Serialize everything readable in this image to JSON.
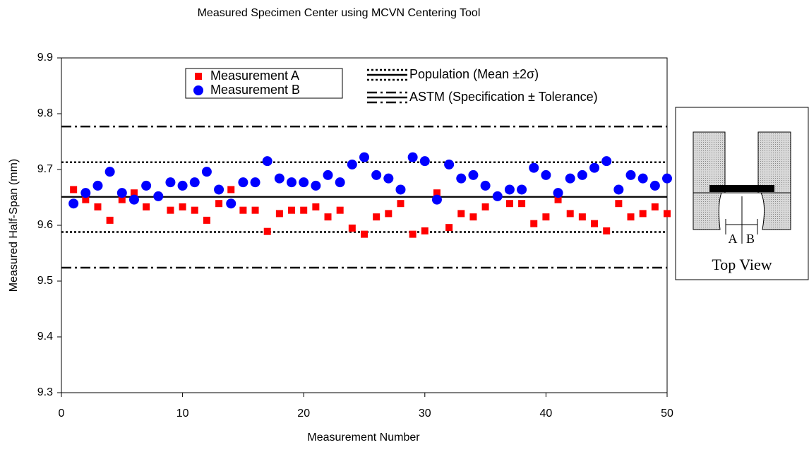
{
  "chart_data": {
    "type": "scatter",
    "title": "Measured Specimen Center using MCVN Centering Tool",
    "x_label": "Measurement Number",
    "y_label": "Measured Half-Span (mm)",
    "x": [
      1,
      2,
      3,
      4,
      5,
      6,
      7,
      8,
      9,
      10,
      11,
      12,
      13,
      14,
      15,
      16,
      17,
      18,
      19,
      20,
      21,
      22,
      23,
      24,
      25,
      26,
      27,
      28,
      29,
      30,
      31,
      32,
      33,
      34,
      35,
      36,
      37,
      38,
      39,
      40,
      41,
      42,
      43,
      44,
      45,
      46,
      47,
      48,
      49,
      50
    ],
    "series": [
      {
        "name": "Measurement A",
        "color": "#ff0000",
        "marker": "square",
        "values": [
          9.664,
          9.646,
          9.633,
          9.609,
          9.646,
          9.658,
          9.633,
          9.652,
          9.627,
          9.633,
          9.627,
          9.609,
          9.639,
          9.664,
          9.627,
          9.627,
          9.589,
          9.621,
          9.627,
          9.627,
          9.633,
          9.615,
          9.627,
          9.595,
          9.584,
          9.615,
          9.621,
          9.639,
          9.584,
          9.59,
          9.658,
          9.596,
          9.621,
          9.615,
          9.633,
          9.652,
          9.639,
          9.639,
          9.603,
          9.615,
          9.646,
          9.621,
          9.615,
          9.603,
          9.59,
          9.639,
          9.615,
          9.621,
          9.633,
          9.621
        ]
      },
      {
        "name": "Measurement B",
        "color": "#0000ff",
        "marker": "circle",
        "values": [
          9.639,
          9.658,
          9.671,
          9.696,
          9.658,
          9.646,
          9.671,
          9.652,
          9.677,
          9.671,
          9.677,
          9.696,
          9.664,
          9.639,
          9.677,
          9.677,
          9.715,
          9.684,
          9.677,
          9.677,
          9.671,
          9.69,
          9.677,
          9.709,
          9.722,
          9.69,
          9.684,
          9.664,
          9.722,
          9.715,
          9.646,
          9.709,
          9.684,
          9.69,
          9.671,
          9.652,
          9.664,
          9.664,
          9.703,
          9.69,
          9.658,
          9.684,
          9.69,
          9.703,
          9.715,
          9.664,
          9.69,
          9.684,
          9.671,
          9.684
        ]
      }
    ],
    "reference_lines": [
      {
        "name": "Population (Mean ±2σ)",
        "style": "dotted",
        "center": 9.651,
        "lower": 9.588,
        "upper": 9.713
      },
      {
        "name": "ASTM (Specification ± Tolerance)",
        "style": "dashdot",
        "center": 9.651,
        "lower": 9.524,
        "upper": 9.777
      }
    ],
    "xlim": [
      0,
      50
    ],
    "xticks": [
      0,
      10,
      20,
      30,
      40,
      50
    ],
    "ylim": [
      9.3,
      9.9
    ],
    "yticks": [
      9.3,
      9.4,
      9.5,
      9.6,
      9.7,
      9.8,
      9.9
    ],
    "grid": false
  },
  "inset": {
    "labels": [
      "A",
      "B"
    ],
    "caption": "Top View"
  }
}
